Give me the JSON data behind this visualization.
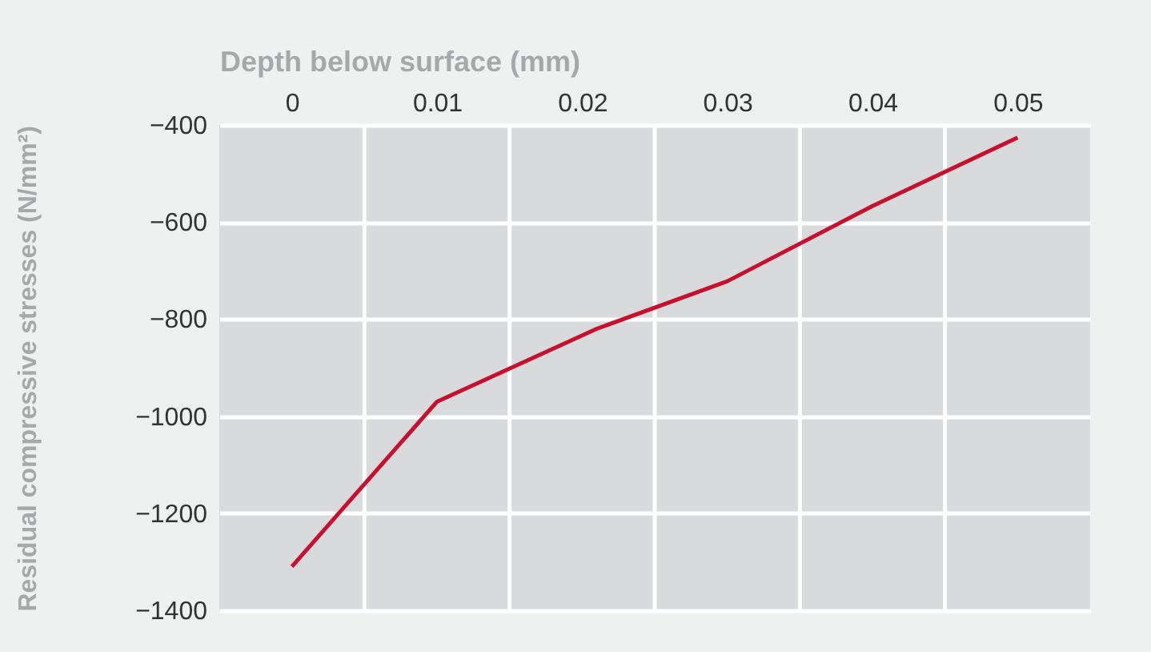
{
  "chart_data": {
    "type": "line",
    "xlabel": "Depth below surface (mm)",
    "ylabel": "Residual compressive stresses (N/mm²)",
    "x": [
      0,
      0.01,
      0.021,
      0.03,
      0.04,
      0.05
    ],
    "series": [
      {
        "color": "#c8102e",
        "values": [
          -1310,
          -970,
          -820,
          -722,
          -567,
          -426
        ]
      }
    ],
    "xlim": [
      -0.005,
      0.055
    ],
    "xticks": [
      0,
      0.01,
      0.02,
      0.03,
      0.04,
      0.05,
      {
        "value": 0.005,
        "label": null
      },
      {
        "value": 0.015,
        "label": null
      },
      {
        "value": 0.025,
        "label": null
      },
      {
        "value": 0.035,
        "label": null
      },
      {
        "value": 0.045,
        "label": null
      }
    ],
    "ylim": [
      -1400,
      -400
    ],
    "yticks": [
      -1400,
      -1200,
      -1000,
      -800,
      -600,
      -400
    ],
    "grid": true,
    "line_style": "solid",
    "marker": "none"
  }
}
